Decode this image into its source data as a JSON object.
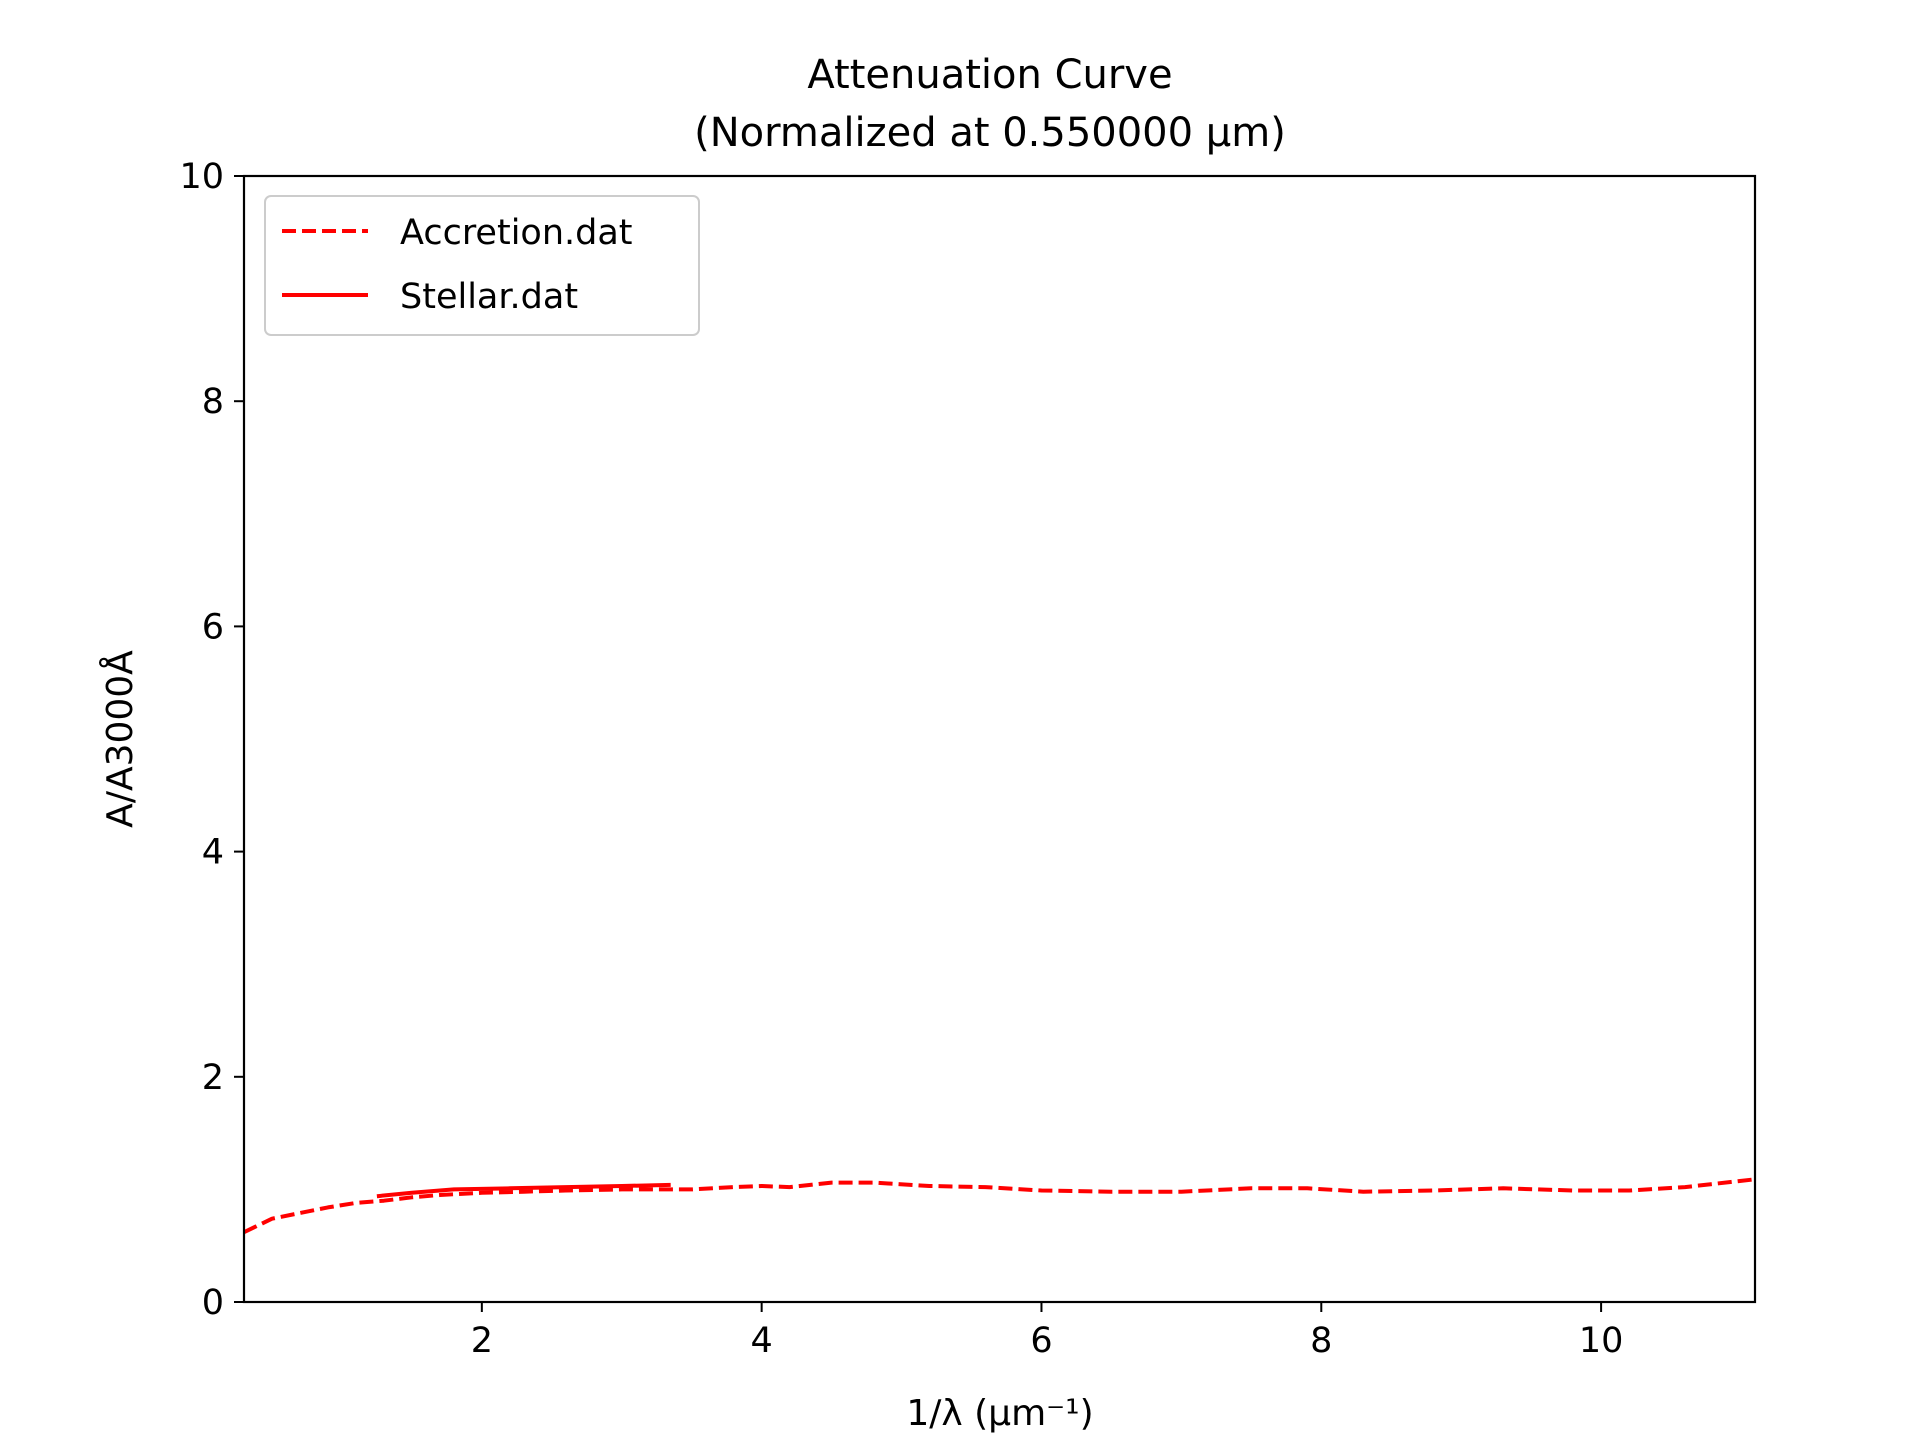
{
  "chart_data": {
    "type": "line",
    "title": "Attenuation Curve",
    "subtitle": "(Normalized at 0.550000 μm)",
    "xlabel": "1/λ (μm⁻¹)",
    "ylabel": "A/A3000Å",
    "xlim": [
      0.3,
      11.1
    ],
    "ylim": [
      0,
      10
    ],
    "xticks": [
      2,
      4,
      6,
      8,
      10
    ],
    "yticks": [
      0,
      2,
      4,
      6,
      8,
      10
    ],
    "grid": false,
    "legend": {
      "position": "upper-left"
    },
    "series": [
      {
        "name": "Accretion.dat",
        "color": "#ff0000",
        "style": "dashed",
        "points": [
          [
            0.3,
            0.62
          ],
          [
            0.5,
            0.74
          ],
          [
            0.7,
            0.79
          ],
          [
            0.9,
            0.84
          ],
          [
            1.1,
            0.88
          ],
          [
            1.3,
            0.9
          ],
          [
            1.5,
            0.93
          ],
          [
            1.7,
            0.95
          ],
          [
            2.0,
            0.97
          ],
          [
            2.3,
            0.98
          ],
          [
            2.6,
            0.99
          ],
          [
            3.0,
            1.0
          ],
          [
            3.5,
            1.0
          ],
          [
            3.8,
            1.02
          ],
          [
            4.0,
            1.03
          ],
          [
            4.2,
            1.02
          ],
          [
            4.5,
            1.06
          ],
          [
            4.8,
            1.06
          ],
          [
            5.2,
            1.03
          ],
          [
            5.6,
            1.02
          ],
          [
            6.0,
            0.99
          ],
          [
            6.5,
            0.98
          ],
          [
            7.0,
            0.98
          ],
          [
            7.5,
            1.01
          ],
          [
            7.9,
            1.01
          ],
          [
            8.3,
            0.98
          ],
          [
            8.8,
            0.99
          ],
          [
            9.3,
            1.01
          ],
          [
            9.8,
            0.99
          ],
          [
            10.2,
            0.99
          ],
          [
            10.6,
            1.02
          ],
          [
            11.1,
            1.09
          ]
        ]
      },
      {
        "name": "Stellar.dat",
        "color": "#ff0000",
        "style": "solid",
        "points": [
          [
            1.25,
            0.94
          ],
          [
            1.5,
            0.97
          ],
          [
            1.8,
            1.0
          ],
          [
            2.2,
            1.01
          ],
          [
            2.6,
            1.02
          ],
          [
            3.0,
            1.03
          ],
          [
            3.35,
            1.04
          ]
        ]
      }
    ]
  }
}
